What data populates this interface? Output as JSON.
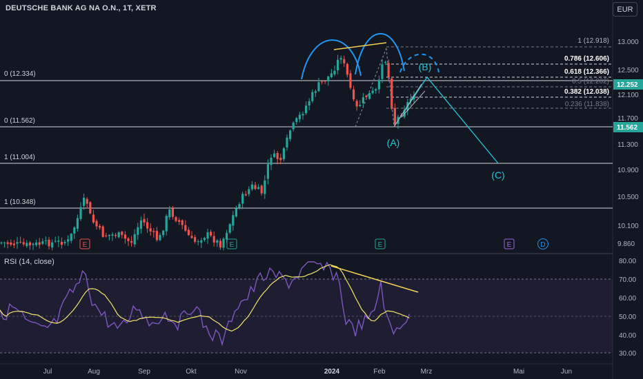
{
  "header": {
    "title": "DEUTSCHE BANK AG NA O.N., 1T, XETR",
    "currency": "EUR"
  },
  "price_axis": {
    "ticks": [
      "13.000",
      "12.500",
      "12.100",
      "11.700",
      "11.300",
      "10.900",
      "10.500",
      "10.100",
      "9.860"
    ],
    "current_price": "12.252",
    "level_price": "11.562"
  },
  "rsi": {
    "title": "RSI (14, close)",
    "ticks": [
      "80.00",
      "70.00",
      "60.00",
      "50.00",
      "40.00",
      "30.00"
    ]
  },
  "time_axis": [
    "Jul",
    "Aug",
    "Sep",
    "Okt",
    "Nov",
    "2024",
    "Feb",
    "Mrz",
    "Mai",
    "Jun"
  ],
  "fib_levels_left": [
    "0 (12.334)",
    "0 (11.562)",
    "1 (11.004)",
    "1 (10.348)"
  ],
  "fib_levels_right": [
    "1 (12.918)",
    "0.786 (12.606)",
    "0.618 (12.366)",
    "0.5 (12.202)",
    "0.382 (12.038)",
    "0.236 (11.838)"
  ],
  "wave_labels": [
    "(A)",
    "(B)",
    "(C)"
  ],
  "event_markers": [
    "E",
    "E",
    "E",
    "E",
    "D"
  ],
  "colors": {
    "background": "#131722",
    "up": "#26a69a",
    "down": "#ef5350",
    "cyan": "#26c6da",
    "arc_blue": "#2196f3",
    "yellow": "#f7d354",
    "rsi_line": "#7e57c2",
    "rsi_ma": "#f5e66b",
    "level_green": "#26a69a"
  }
}
